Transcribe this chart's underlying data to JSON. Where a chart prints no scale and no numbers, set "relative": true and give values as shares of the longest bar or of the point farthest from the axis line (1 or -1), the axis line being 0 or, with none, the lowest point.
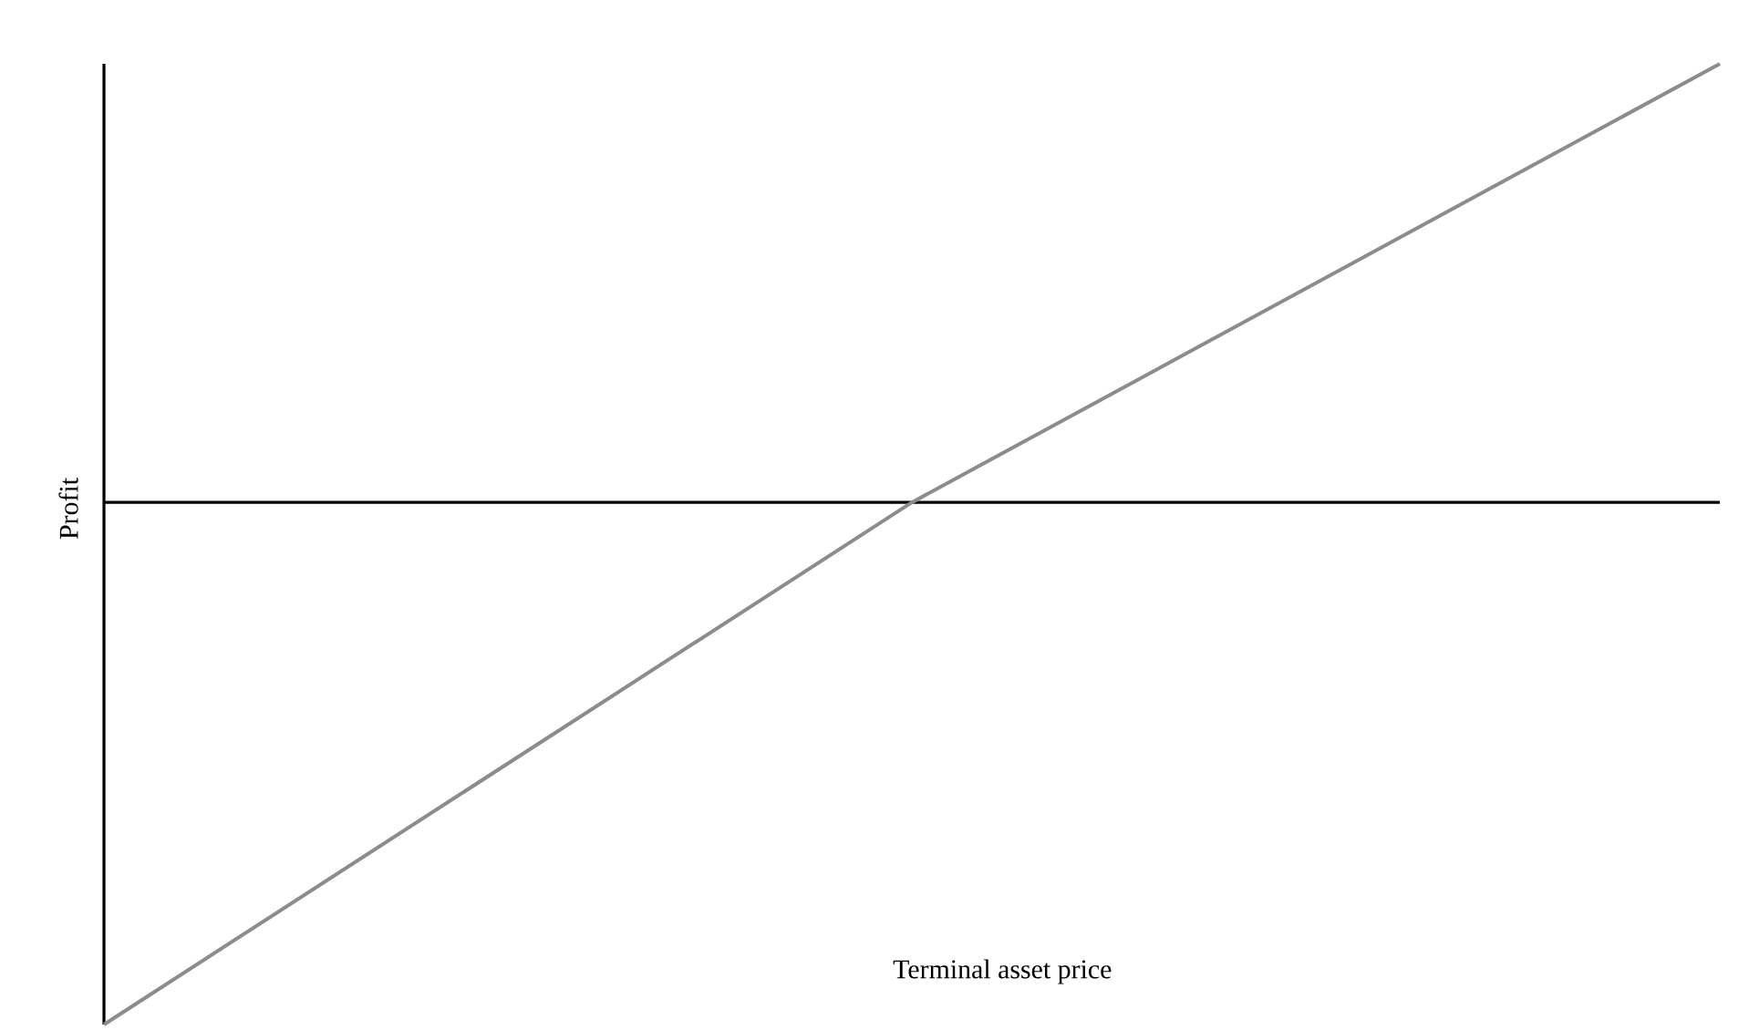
{
  "chart_data": {
    "type": "line",
    "relative": true,
    "xlabel": "Terminal asset price",
    "ylabel": "Profit",
    "categories": [
      null,
      null,
      null
    ],
    "series": [
      {
        "color": "#8c8c8c",
        "values": [
          -1,
          0,
          0.84
        ]
      }
    ]
  }
}
